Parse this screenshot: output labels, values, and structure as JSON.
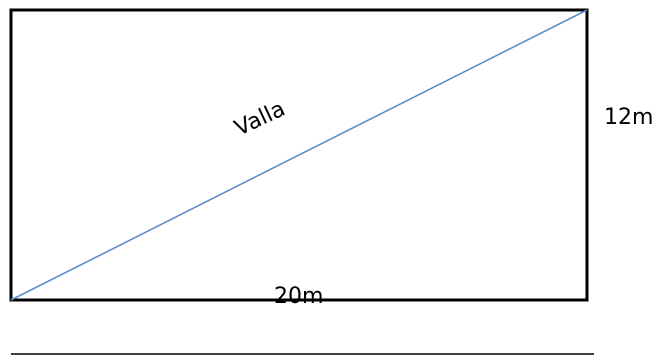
{
  "diagram": {
    "diagonal_label": "Valla",
    "height_label": "12m",
    "width_label": "20m"
  },
  "colors": {
    "rectangle_stroke": "#000000",
    "diagonal_stroke": "#5b8ec9",
    "bottom_rule": "#000000",
    "text": "#000000"
  }
}
